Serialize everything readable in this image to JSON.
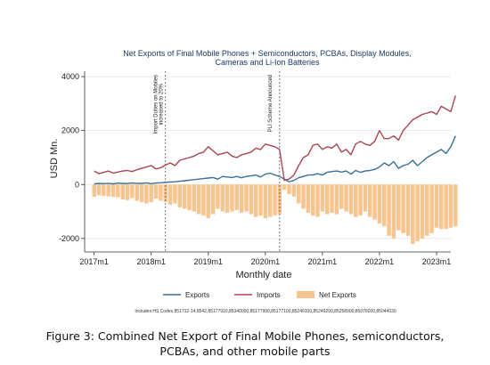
{
  "chart_data": {
    "type": "line",
    "title": "Net Exports of Final Mobile Phones + Semiconductors, PCBAs, Display Modules,",
    "title_line2": "Cameras and Li-Ion Batteries",
    "xlabel": "Monthly date",
    "ylabel": "USD Mn.",
    "ylim": [
      -2500,
      4200
    ],
    "yticks": [
      -2000,
      0,
      2000,
      4000
    ],
    "xticks": [
      {
        "label": "2017m1",
        "t": 0
      },
      {
        "label": "2018m1",
        "t": 12
      },
      {
        "label": "2019m1",
        "t": 24
      },
      {
        "label": "2020m1",
        "t": 36
      },
      {
        "label": "2021m1",
        "t": 48
      },
      {
        "label": "2022m1",
        "t": 60
      },
      {
        "label": "2023m1",
        "t": 72
      }
    ],
    "xlim": [
      -2,
      75
    ],
    "grid": true,
    "legend_position": "bottom",
    "annotations": [
      {
        "t": 15,
        "text": "Import Duties on Mobiles",
        "text2": "increased to 20%"
      },
      {
        "t": 39,
        "text": "PLI Scheme Announced"
      }
    ],
    "footnote": "Includes HS Codes 851712-14,8542,85177910,85340000,85177990,85177100,85249100,85249200,85258900,85076000,85044030",
    "series": [
      {
        "name": "Exports",
        "kind": "line",
        "color": "#3b6f9a",
        "t0": 0,
        "values": [
          20,
          40,
          30,
          45,
          25,
          50,
          40,
          35,
          55,
          45,
          40,
          60,
          30,
          55,
          65,
          80,
          90,
          100,
          120,
          140,
          160,
          180,
          200,
          220,
          240,
          260,
          200,
          300,
          280,
          260,
          300,
          250,
          300,
          320,
          350,
          280,
          380,
          420,
          350,
          300,
          200,
          100,
          150,
          250,
          300,
          350,
          350,
          400,
          350,
          450,
          480,
          500,
          460,
          500,
          380,
          520,
          450,
          500,
          520,
          560,
          650,
          800,
          700,
          850,
          600,
          700,
          750,
          900,
          700,
          850,
          1000,
          1100,
          1200,
          1300,
          1150,
          1400,
          1800
        ]
      },
      {
        "name": "Imports",
        "kind": "line",
        "color": "#a8474f",
        "t0": 0,
        "values": [
          500,
          400,
          450,
          500,
          420,
          460,
          500,
          520,
          480,
          550,
          600,
          650,
          700,
          580,
          620,
          720,
          800,
          700,
          900,
          950,
          1000,
          1050,
          1150,
          1200,
          1400,
          1250,
          1100,
          1150,
          1200,
          1050,
          1000,
          1100,
          1150,
          1200,
          1350,
          1300,
          1500,
          1450,
          1400,
          1300,
          150,
          200,
          350,
          700,
          1000,
          1100,
          1450,
          1500,
          1300,
          1400,
          1350,
          1500,
          1200,
          1300,
          1100,
          1500,
          1600,
          1500,
          1450,
          1600,
          2000,
          1700,
          1700,
          1800,
          1650,
          2000,
          2200,
          2400,
          2500,
          2600,
          2650,
          2700,
          2600,
          2900,
          2800,
          2700,
          3300
        ]
      },
      {
        "name": "Net Exports",
        "kind": "bar",
        "color": "#f8c48f",
        "t0": 0,
        "values": [
          -450,
          -400,
          -420,
          -440,
          -460,
          -470,
          -550,
          -580,
          -500,
          -600,
          -650,
          -700,
          -650,
          -520,
          -600,
          -640,
          -750,
          -700,
          -850,
          -900,
          -950,
          -1000,
          -1100,
          -1150,
          -1250,
          -1100,
          -900,
          -1000,
          -1050,
          -1000,
          -950,
          -1050,
          -1000,
          -1100,
          -1200,
          -1150,
          -1250,
          -1200,
          -1150,
          -1100,
          -200,
          -350,
          -450,
          -700,
          -900,
          -1050,
          -1150,
          -1200,
          -1000,
          -1100,
          -1050,
          -1100,
          -900,
          -1000,
          -1100,
          -1200,
          -1150,
          -1000,
          -1200,
          -1300,
          -1450,
          -1550,
          -1900,
          -2000,
          -1700,
          -1800,
          -1900,
          -2200,
          -2100,
          -2000,
          -1900,
          -1800,
          -1600,
          -1650,
          -1650,
          -1600,
          -1550
        ]
      }
    ]
  },
  "caption": {
    "line1": "Figure 3: Combined Net Export of Final Mobile Phones, semiconductors,",
    "line2": "PCBAs, and other mobile parts"
  }
}
